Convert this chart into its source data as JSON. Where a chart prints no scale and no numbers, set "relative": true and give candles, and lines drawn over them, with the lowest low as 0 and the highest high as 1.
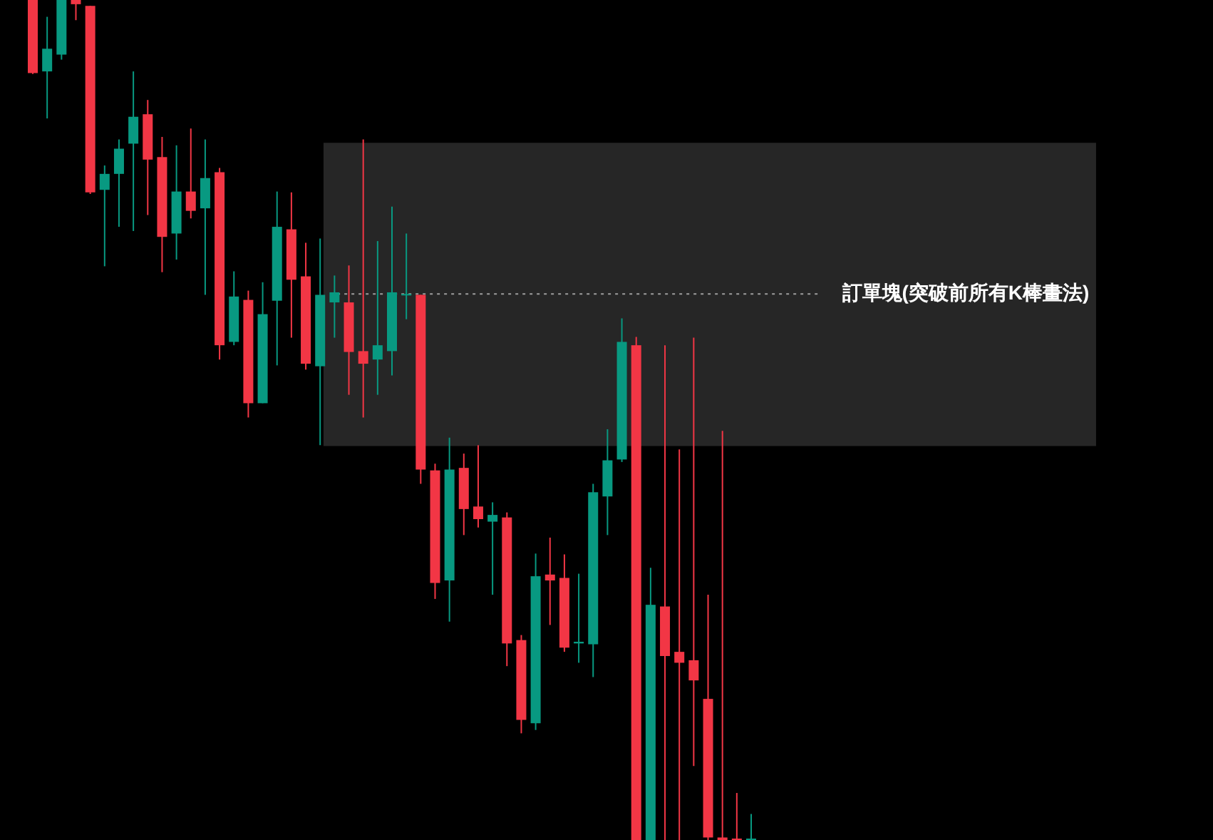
{
  "chart_data": {
    "type": "candlestick",
    "relative": true,
    "categories": [
      null,
      null,
      null,
      null,
      null,
      null,
      null,
      null,
      null,
      null,
      null,
      null,
      null,
      null,
      null,
      null,
      null,
      null,
      null,
      null,
      null,
      null,
      null,
      null,
      null,
      null,
      null,
      null,
      null,
      null,
      null,
      null,
      null,
      null,
      null,
      null,
      null,
      null,
      null,
      null,
      null,
      null,
      null,
      null,
      null,
      null,
      null,
      null,
      null,
      null,
      null
    ],
    "ohlc": [
      [
        1.0,
        1.0,
        0.912,
        0.913
      ],
      [
        0.915,
        0.98,
        0.859,
        0.942
      ],
      [
        0.935,
        1.0,
        0.929,
        1.0
      ],
      [
        1.0,
        1.0,
        0.976,
        0.995
      ],
      [
        0.993,
        0.993,
        0.769,
        0.771
      ],
      [
        0.774,
        0.803,
        0.683,
        0.793
      ],
      [
        0.793,
        0.834,
        0.73,
        0.823
      ],
      [
        0.829,
        0.915,
        0.725,
        0.861
      ],
      [
        0.864,
        0.881,
        0.744,
        0.81
      ],
      [
        0.813,
        0.837,
        0.676,
        0.718
      ],
      [
        0.722,
        0.827,
        0.691,
        0.772
      ],
      [
        0.772,
        0.847,
        0.74,
        0.749
      ],
      [
        0.752,
        0.834,
        0.649,
        0.788
      ],
      [
        0.795,
        0.8,
        0.572,
        0.589
      ],
      [
        0.593,
        0.677,
        0.589,
        0.647
      ],
      [
        0.643,
        0.654,
        0.503,
        0.52
      ],
      [
        0.52,
        0.664,
        0.52,
        0.626
      ],
      [
        0.642,
        0.772,
        0.565,
        0.73
      ],
      [
        0.727,
        0.771,
        0.598,
        0.667
      ],
      [
        0.671,
        0.711,
        0.56,
        0.567
      ],
      [
        0.564,
        0.716,
        0.47,
        0.649
      ],
      [
        0.64,
        0.672,
        0.598,
        0.652
      ],
      [
        0.64,
        0.684,
        0.53,
        0.581
      ],
      [
        0.582,
        0.834,
        0.503,
        0.567
      ],
      [
        0.572,
        0.713,
        0.53,
        0.589
      ],
      [
        0.582,
        0.754,
        0.553,
        0.652
      ],
      [
        0.649,
        0.722,
        0.62,
        0.65
      ],
      [
        0.649,
        0.649,
        0.424,
        0.441
      ],
      [
        0.44,
        0.448,
        0.287,
        0.306
      ],
      [
        0.309,
        0.479,
        0.26,
        0.441
      ],
      [
        0.443,
        0.46,
        0.363,
        0.394
      ],
      [
        0.397,
        0.47,
        0.372,
        0.382
      ],
      [
        0.379,
        0.402,
        0.292,
        0.387
      ],
      [
        0.384,
        0.39,
        0.207,
        0.234
      ],
      [
        0.238,
        0.244,
        0.127,
        0.143
      ],
      [
        0.139,
        0.341,
        0.131,
        0.314
      ],
      [
        0.316,
        0.36,
        0.256,
        0.309
      ],
      [
        0.312,
        0.34,
        0.224,
        0.229
      ],
      [
        0.234,
        0.317,
        0.211,
        0.236
      ],
      [
        0.233,
        0.424,
        0.194,
        0.414
      ],
      [
        0.409,
        0.489,
        0.363,
        0.452
      ],
      [
        0.453,
        0.621,
        0.45,
        0.593
      ],
      [
        0.589,
        0.599,
        0.0,
        0.0
      ],
      [
        0.0,
        0.324,
        0.0,
        0.28
      ],
      [
        0.278,
        0.589,
        0.0,
        0.219
      ],
      [
        0.224,
        0.465,
        0.0,
        0.211
      ],
      [
        0.214,
        0.598,
        0.088,
        0.19
      ],
      [
        0.168,
        0.292,
        0.0,
        0.003
      ],
      [
        0.003,
        0.487,
        0.0,
        0.0
      ],
      [
        0.0,
        0.056,
        0.0,
        0.0
      ],
      [
        0.0,
        0.031,
        0.0,
        0.0
      ]
    ],
    "colors": [
      "#f23645",
      "#089981",
      "#089981",
      "#f23645",
      "#f23645",
      "#089981",
      "#089981",
      "#089981",
      "#f23645",
      "#f23645",
      "#089981",
      "#f23645",
      "#089981",
      "#f23645",
      "#089981",
      "#f23645",
      "#089981",
      "#089981",
      "#f23645",
      "#f23645",
      "#089981",
      "#089981",
      "#f23645",
      "#f23645",
      "#089981",
      "#089981",
      "#089981",
      "#f23645",
      "#f23645",
      "#089981",
      "#f23645",
      "#f23645",
      "#089981",
      "#f23645",
      "#f23645",
      "#089981",
      "#f23645",
      "#f23645",
      "#089981",
      "#089981",
      "#089981",
      "#089981",
      "#f23645",
      "#089981",
      "#f23645",
      "#f23645",
      "#f23645",
      "#f23645",
      "#f23645",
      "#f23645",
      "#089981"
    ],
    "bands": [
      {
        "axis": "y",
        "from": 0.469,
        "to": 0.83,
        "label": null,
        "color": "#262626"
      }
    ],
    "ref_lines": [
      {
        "axis": "y",
        "value": 0.65,
        "label": "訂單塊(突破前所有K棒畫法)",
        "color": "#9e9e9e",
        "line_style": "dotted"
      }
    ]
  }
}
